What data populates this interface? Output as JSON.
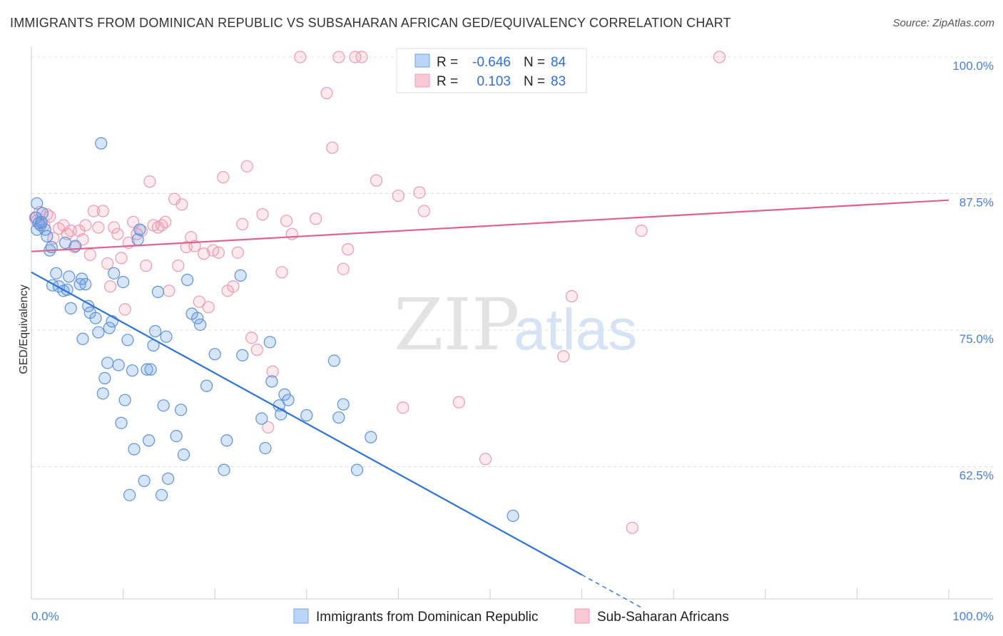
{
  "header": {
    "title": "IMMIGRANTS FROM DOMINICAN REPUBLIC VS SUBSAHARAN AFRICAN GED/EQUIVALENCY CORRELATION CHART",
    "source": "Source: ZipAtlas.com"
  },
  "watermark": {
    "zip": "ZIP",
    "atlas": "atlas"
  },
  "chart_data": {
    "type": "scatter",
    "title": "IMMIGRANTS FROM DOMINICAN REPUBLIC VS SUBSAHARAN AFRICAN GED/EQUIVALENCY CORRELATION CHART",
    "ylabel": "GED/Equivalency",
    "xlabel": "",
    "xlim": [
      0,
      100
    ],
    "ylim": [
      50,
      101.5
    ],
    "x_tick_labels": [
      "0.0%",
      "100.0%"
    ],
    "y_ticks": [
      62.5,
      75.0,
      87.5,
      100.0
    ],
    "y_tick_labels": [
      "62.5%",
      "75.0%",
      "87.5%",
      "100.0%"
    ],
    "grid": "horizontal dashed",
    "legend_position": "top-center",
    "stats": [
      {
        "r_label": "R = ",
        "r": "-0.646",
        "n_label": "N = ",
        "n": "84"
      },
      {
        "r_label": "R = ",
        "r": "0.103",
        "n_label": "N = ",
        "n": "83"
      }
    ],
    "bottom_legend": [
      "Immigrants from Dominican Republic",
      "Sub-Saharan Africans"
    ],
    "colors": {
      "series1": "#6fa3e6",
      "series2": "#f0a0b8",
      "line1": "#2f72d4",
      "line2": "#e0628c"
    },
    "series": [
      {
        "name": "Immigrants from Dominican Republic",
        "trend": {
          "x0": 0,
          "y0": 80.3,
          "x1": 60,
          "y1": 52.6,
          "dash_to_x": 66.5
        },
        "points": [
          [
            0.6,
            86.6
          ],
          [
            0.5,
            85.3
          ],
          [
            0.6,
            84.2
          ],
          [
            0.8,
            84.8
          ],
          [
            1.0,
            84.6
          ],
          [
            1.2,
            85.7
          ],
          [
            1.5,
            84.2
          ],
          [
            1.7,
            83.6
          ],
          [
            2.0,
            82.3
          ],
          [
            2.2,
            82.6
          ],
          [
            2.3,
            79.1
          ],
          [
            2.7,
            80.2
          ],
          [
            3.0,
            79.0
          ],
          [
            3.5,
            78.6
          ],
          [
            3.7,
            83.0
          ],
          [
            3.9,
            78.7
          ],
          [
            4.1,
            79.9
          ],
          [
            4.3,
            77.0
          ],
          [
            4.8,
            82.7
          ],
          [
            5.3,
            79.2
          ],
          [
            5.5,
            79.7
          ],
          [
            5.6,
            74.2
          ],
          [
            5.9,
            79.2
          ],
          [
            6.2,
            77.2
          ],
          [
            6.4,
            76.6
          ],
          [
            7.0,
            76.1
          ],
          [
            7.3,
            74.8
          ],
          [
            7.6,
            92.1
          ],
          [
            7.8,
            69.2
          ],
          [
            8.0,
            70.6
          ],
          [
            8.3,
            72.0
          ],
          [
            8.5,
            75.2
          ],
          [
            8.8,
            75.8
          ],
          [
            9.0,
            80.2
          ],
          [
            9.5,
            71.8
          ],
          [
            9.8,
            66.5
          ],
          [
            10.0,
            79.4
          ],
          [
            10.2,
            68.6
          ],
          [
            10.5,
            74.1
          ],
          [
            10.7,
            59.9
          ],
          [
            11.0,
            71.3
          ],
          [
            11.2,
            64.1
          ],
          [
            11.6,
            83.3
          ],
          [
            11.8,
            84.2
          ],
          [
            12.3,
            61.2
          ],
          [
            12.6,
            71.4
          ],
          [
            12.8,
            64.9
          ],
          [
            13.0,
            71.4
          ],
          [
            13.3,
            73.6
          ],
          [
            13.5,
            74.9
          ],
          [
            13.8,
            78.5
          ],
          [
            14.2,
            59.9
          ],
          [
            14.4,
            68.1
          ],
          [
            14.7,
            74.4
          ],
          [
            14.9,
            61.4
          ],
          [
            15.8,
            65.3
          ],
          [
            16.3,
            67.7
          ],
          [
            16.6,
            63.6
          ],
          [
            17.0,
            79.6
          ],
          [
            17.5,
            76.5
          ],
          [
            18.1,
            76.1
          ],
          [
            18.4,
            75.5
          ],
          [
            19.1,
            69.9
          ],
          [
            20.0,
            72.8
          ],
          [
            21.0,
            62.2
          ],
          [
            21.3,
            64.9
          ],
          [
            22.8,
            80.0
          ],
          [
            23.0,
            72.7
          ],
          [
            25.1,
            66.9
          ],
          [
            25.5,
            64.2
          ],
          [
            26.0,
            73.9
          ],
          [
            26.2,
            70.3
          ],
          [
            27.0,
            68.1
          ],
          [
            27.2,
            67.3
          ],
          [
            27.6,
            69.1
          ],
          [
            28.0,
            68.6
          ],
          [
            30.0,
            67.2
          ],
          [
            33.0,
            72.2
          ],
          [
            33.5,
            67.0
          ],
          [
            34.0,
            68.2
          ],
          [
            35.5,
            62.2
          ],
          [
            37.0,
            65.2
          ],
          [
            52.5,
            58.0
          ],
          [
            1.1,
            84.9
          ]
        ]
      },
      {
        "name": "Sub-Saharan Africans",
        "trend": {
          "x0": 0,
          "y0": 82.2,
          "x1": 100,
          "y1": 86.9
        },
        "points": [
          [
            0.4,
            85.3
          ],
          [
            0.6,
            85.0
          ],
          [
            0.9,
            85.8
          ],
          [
            1.1,
            84.8
          ],
          [
            1.4,
            84.6
          ],
          [
            1.7,
            85.6
          ],
          [
            2.0,
            85.4
          ],
          [
            2.4,
            83.4
          ],
          [
            3.0,
            84.3
          ],
          [
            3.5,
            84.6
          ],
          [
            3.9,
            83.8
          ],
          [
            4.3,
            84.1
          ],
          [
            4.7,
            82.6
          ],
          [
            5.2,
            84.1
          ],
          [
            5.6,
            83.3
          ],
          [
            5.9,
            84.6
          ],
          [
            6.4,
            81.9
          ],
          [
            6.8,
            85.9
          ],
          [
            7.3,
            84.4
          ],
          [
            7.8,
            85.9
          ],
          [
            8.3,
            81.1
          ],
          [
            8.6,
            79.0
          ],
          [
            9.0,
            84.4
          ],
          [
            9.4,
            83.8
          ],
          [
            9.8,
            81.6
          ],
          [
            10.2,
            76.9
          ],
          [
            10.6,
            83.0
          ],
          [
            11.1,
            84.9
          ],
          [
            11.5,
            83.8
          ],
          [
            12.0,
            84.1
          ],
          [
            12.5,
            80.9
          ],
          [
            12.9,
            88.6
          ],
          [
            13.3,
            84.6
          ],
          [
            13.8,
            84.4
          ],
          [
            14.2,
            84.6
          ],
          [
            14.6,
            84.9
          ],
          [
            15.0,
            78.6
          ],
          [
            15.6,
            87.0
          ],
          [
            16.0,
            80.9
          ],
          [
            16.4,
            86.5
          ],
          [
            16.9,
            82.6
          ],
          [
            17.4,
            83.5
          ],
          [
            17.8,
            82.7
          ],
          [
            18.3,
            77.6
          ],
          [
            18.8,
            82.0
          ],
          [
            19.3,
            77.1
          ],
          [
            19.8,
            82.3
          ],
          [
            20.4,
            82.1
          ],
          [
            20.9,
            89.0
          ],
          [
            21.4,
            78.6
          ],
          [
            22.0,
            79.0
          ],
          [
            22.5,
            82.1
          ],
          [
            23.0,
            84.7
          ],
          [
            23.5,
            90.0
          ],
          [
            24.0,
            74.3
          ],
          [
            24.6,
            73.2
          ],
          [
            25.2,
            85.6
          ],
          [
            25.8,
            66.1
          ],
          [
            26.3,
            71.2
          ],
          [
            27.3,
            80.3
          ],
          [
            27.8,
            85.0
          ],
          [
            28.4,
            83.8
          ],
          [
            29.3,
            100.0
          ],
          [
            31.0,
            85.2
          ],
          [
            32.2,
            96.7
          ],
          [
            32.8,
            91.7
          ],
          [
            33.5,
            100.0
          ],
          [
            34.0,
            80.6
          ],
          [
            34.5,
            82.4
          ],
          [
            35.3,
            100.0
          ],
          [
            36.0,
            100.0
          ],
          [
            37.6,
            88.7
          ],
          [
            40.0,
            87.3
          ],
          [
            40.5,
            67.9
          ],
          [
            42.3,
            87.6
          ],
          [
            42.8,
            85.9
          ],
          [
            46.6,
            68.4
          ],
          [
            49.5,
            63.2
          ],
          [
            58.0,
            72.6
          ],
          [
            58.9,
            78.1
          ],
          [
            65.5,
            56.9
          ],
          [
            66.5,
            84.1
          ],
          [
            75.0,
            100.0
          ]
        ]
      }
    ]
  }
}
